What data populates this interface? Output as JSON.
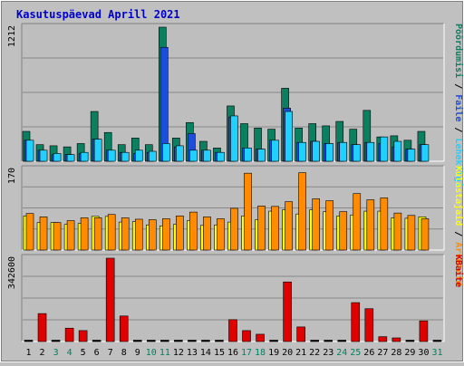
{
  "title": "Kasutuspäevad Aprill 2021",
  "colors": {
    "background": "#c0c0c0",
    "plot_bg": "#bebebe",
    "grid": "#888888",
    "hits": "#0a8060",
    "files": "#1c4ddb",
    "pages": "#20d0ff",
    "visits": "#ff8c00",
    "sites": "#ffff00",
    "kbytes": "#e00000",
    "title": "#0000cc",
    "weekend": "#008060",
    "weekday": "#000000"
  },
  "legend": {
    "top": [
      {
        "text": "Pöördumisi",
        "color": "#0a8060"
      },
      {
        "text": " / ",
        "color": "#000000"
      },
      {
        "text": "Faile",
        "color": "#1c4ddb"
      },
      {
        "text": " / ",
        "color": "#000000"
      },
      {
        "text": "Lehekülgi",
        "color": "#20d0ff"
      }
    ],
    "middle": [
      {
        "text": "Külastajaid",
        "color": "#ffff00"
      },
      {
        "text": " / ",
        "color": "#000000"
      },
      {
        "text": "Arvuteid",
        "color": "#ff8c00"
      }
    ],
    "bottom": [
      {
        "text": "KBaite",
        "color": "#e00000"
      }
    ]
  },
  "chart_data": [
    {
      "type": "bar",
      "panel": "hits-files-pages",
      "ymax_label": "1212",
      "ylim": [
        0,
        1212
      ],
      "categories": [
        "1",
        "2",
        "3",
        "4",
        "5",
        "6",
        "7",
        "8",
        "9",
        "10",
        "11",
        "12",
        "13",
        "14",
        "15",
        "16",
        "17",
        "18",
        "19",
        "20",
        "21",
        "22",
        "23",
        "24",
        "25",
        "26",
        "27",
        "28",
        "29",
        "30",
        "31"
      ],
      "series": [
        {
          "name": "Pöördumisi",
          "values": [
            270,
            150,
            140,
            130,
            160,
            450,
            260,
            150,
            210,
            150,
            1212,
            210,
            350,
            180,
            120,
            500,
            340,
            300,
            290,
            660,
            300,
            340,
            320,
            360,
            290,
            460,
            220,
            230,
            190,
            270,
            0
          ]
        },
        {
          "name": "Faile",
          "values": [
            190,
            100,
            60,
            60,
            70,
            200,
            100,
            80,
            70,
            80,
            1030,
            130,
            250,
            100,
            80,
            400,
            120,
            110,
            190,
            480,
            170,
            180,
            160,
            170,
            150,
            170,
            160,
            130,
            110,
            150,
            0
          ]
        },
        {
          "name": "Lehekülgi",
          "values": [
            190,
            100,
            70,
            60,
            80,
            200,
            100,
            80,
            100,
            90,
            160,
            140,
            100,
            100,
            80,
            410,
            120,
            110,
            190,
            450,
            170,
            180,
            160,
            170,
            150,
            170,
            220,
            180,
            110,
            150,
            0
          ]
        }
      ]
    },
    {
      "type": "bar",
      "panel": "visitors",
      "ymax_label": "170",
      "ylim": [
        0,
        170
      ],
      "categories": [
        "1",
        "2",
        "3",
        "4",
        "5",
        "6",
        "7",
        "8",
        "9",
        "10",
        "11",
        "12",
        "13",
        "14",
        "15",
        "16",
        "17",
        "18",
        "19",
        "20",
        "21",
        "22",
        "23",
        "24",
        "25",
        "26",
        "27",
        "28",
        "29",
        "30",
        "31"
      ],
      "series": [
        {
          "name": "Külastajaid",
          "values": [
            72,
            58,
            58,
            54,
            56,
            71,
            71,
            59,
            60,
            53,
            51,
            54,
            62,
            52,
            53,
            59,
            72,
            64,
            82,
            85,
            76,
            85,
            81,
            72,
            74,
            82,
            82,
            68,
            67,
            70,
            0
          ]
        },
        {
          "name": "Arvuteid",
          "values": [
            77,
            70,
            58,
            62,
            68,
            68,
            75,
            68,
            65,
            64,
            66,
            72,
            80,
            70,
            66,
            88,
            162,
            93,
            92,
            102,
            163,
            108,
            104,
            81,
            119,
            106,
            110,
            78,
            73,
            66,
            0
          ]
        }
      ]
    },
    {
      "type": "bar",
      "panel": "kbytes",
      "ymax_label": "342600",
      "ylim": [
        0,
        342600
      ],
      "categories": [
        "1",
        "2",
        "3",
        "4",
        "5",
        "6",
        "7",
        "8",
        "9",
        "10",
        "11",
        "12",
        "13",
        "14",
        "15",
        "16",
        "17",
        "18",
        "19",
        "20",
        "21",
        "22",
        "23",
        "24",
        "25",
        "26",
        "27",
        "28",
        "29",
        "30",
        "31"
      ],
      "series": [
        {
          "name": "KBaite",
          "values": [
            0,
            115000,
            0,
            55000,
            45000,
            0,
            342600,
            105000,
            0,
            0,
            0,
            0,
            0,
            0,
            0,
            90000,
            45000,
            30000,
            0,
            245000,
            60000,
            0,
            0,
            0,
            160000,
            135000,
            20000,
            15000,
            0,
            85000,
            0
          ]
        }
      ]
    }
  ],
  "weekend_days": [
    3,
    4,
    10,
    11,
    17,
    18,
    24,
    25,
    31
  ]
}
